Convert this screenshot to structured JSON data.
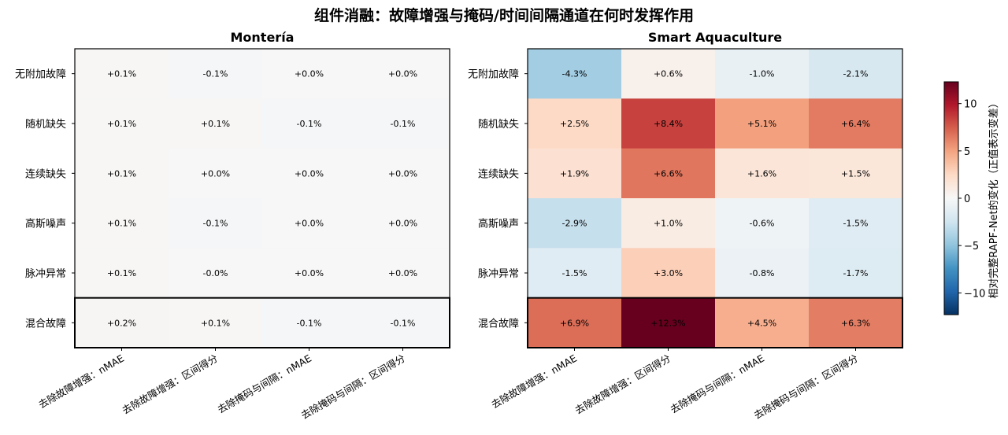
{
  "title": "组件消融：故障增强与掩码/时间间隔通道在何时发挥作用",
  "chart_data": [
    {
      "type": "heatmap",
      "title": "Montería",
      "rows": [
        "无附加故障",
        "随机缺失",
        "连续缺失",
        "高斯噪声",
        "脉冲异常",
        "混合故障"
      ],
      "columns": [
        "去除故障增强：nMAE",
        "去除故障增强：区间得分",
        "去除掩码与间隔：nMAE",
        "去除掩码与间隔：区间得分"
      ],
      "values": [
        [
          0.1,
          -0.1,
          0.0,
          0.0
        ],
        [
          0.1,
          0.1,
          -0.1,
          -0.1
        ],
        [
          0.1,
          0.0,
          0.0,
          0.0
        ],
        [
          0.1,
          -0.1,
          0.0,
          0.0
        ],
        [
          0.1,
          -0.0,
          0.0,
          0.0
        ],
        [
          0.2,
          0.1,
          -0.1,
          -0.1
        ]
      ],
      "labels": [
        [
          "+0.1%",
          "-0.1%",
          "+0.0%",
          "+0.0%"
        ],
        [
          "+0.1%",
          "+0.1%",
          "-0.1%",
          "-0.1%"
        ],
        [
          "+0.1%",
          "+0.0%",
          "+0.0%",
          "+0.0%"
        ],
        [
          "+0.1%",
          "-0.1%",
          "+0.0%",
          "+0.0%"
        ],
        [
          "+0.1%",
          "-0.0%",
          "+0.0%",
          "+0.0%"
        ],
        [
          "+0.2%",
          "+0.1%",
          "-0.1%",
          "-0.1%"
        ]
      ],
      "highlight_row": "混合故障"
    },
    {
      "type": "heatmap",
      "title": "Smart Aquaculture",
      "rows": [
        "无附加故障",
        "随机缺失",
        "连续缺失",
        "高斯噪声",
        "脉冲异常",
        "混合故障"
      ],
      "columns": [
        "去除故障增强：nMAE",
        "去除故障增强：区间得分",
        "去除掩码与间隔：nMAE",
        "去除掩码与间隔：区间得分"
      ],
      "values": [
        [
          -4.3,
          0.6,
          -1.0,
          -2.1
        ],
        [
          2.5,
          8.4,
          5.1,
          6.4
        ],
        [
          1.9,
          6.6,
          1.6,
          1.5
        ],
        [
          -2.9,
          1.0,
          -0.6,
          -1.5
        ],
        [
          -1.5,
          3.0,
          -0.8,
          -1.7
        ],
        [
          6.9,
          12.3,
          4.5,
          6.3
        ]
      ],
      "labels": [
        [
          "-4.3%",
          "+0.6%",
          "-1.0%",
          "-2.1%"
        ],
        [
          "+2.5%",
          "+8.4%",
          "+5.1%",
          "+6.4%"
        ],
        [
          "+1.9%",
          "+6.6%",
          "+1.6%",
          "+1.5%"
        ],
        [
          "-2.9%",
          "+1.0%",
          "-0.6%",
          "-1.5%"
        ],
        [
          "-1.5%",
          "+3.0%",
          "-0.8%",
          "-1.7%"
        ],
        [
          "+6.9%",
          "+12.3%",
          "+4.5%",
          "+6.3%"
        ]
      ],
      "highlight_row": "混合故障"
    }
  ],
  "colorbar": {
    "label": "相对完整RAPF-Net的变化（正值表示变差）",
    "ticks": [
      10,
      5,
      0,
      -5,
      -10
    ],
    "tick_labels": [
      "10",
      "5",
      "0",
      "−5",
      "−10"
    ],
    "vmin": -12.3,
    "vmax": 12.3,
    "colormap": "RdBu_r",
    "colors": [
      "#053061",
      "#2166ac",
      "#4393c3",
      "#92c5de",
      "#d1e5f0",
      "#f7f7f7",
      "#fddbc7",
      "#f4a582",
      "#d6604d",
      "#b2182b",
      "#67001f"
    ]
  }
}
